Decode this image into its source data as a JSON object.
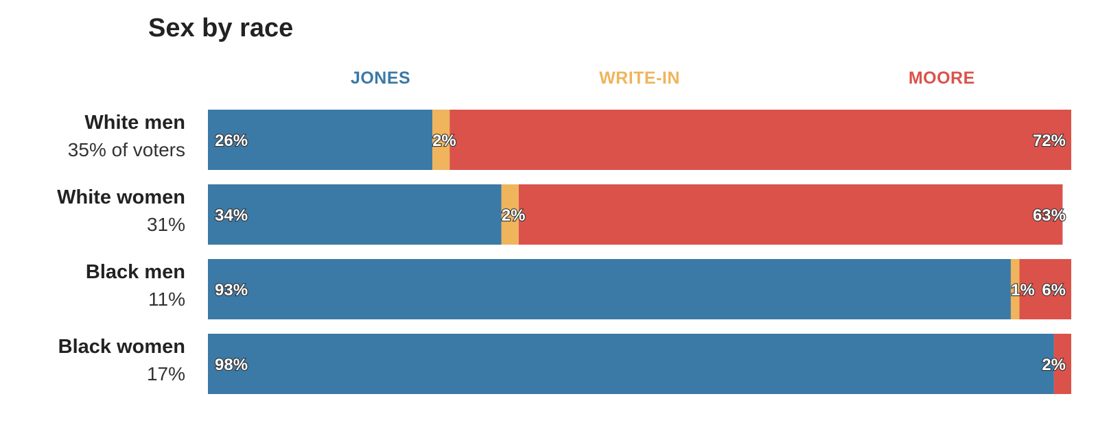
{
  "colors": {
    "jones": "#3b79a6",
    "write_in": "#efb45c",
    "moore": "#db524b"
  },
  "chart_data": {
    "type": "bar",
    "orientation": "horizontal",
    "stacked": true,
    "title": "Sex by race",
    "legend_position": "top",
    "categories": [
      "White men",
      "White women",
      "Black men",
      "Black women"
    ],
    "category_sublabels": [
      "35% of voters",
      "31%",
      "11%",
      "17%"
    ],
    "series": [
      {
        "name": "JONES",
        "color": "#3b79a6",
        "values": [
          26,
          34,
          93,
          98
        ]
      },
      {
        "name": "WRITE-IN",
        "color": "#efb45c",
        "values": [
          2,
          2,
          1,
          0
        ]
      },
      {
        "name": "MOORE",
        "color": "#db524b",
        "values": [
          72,
          63,
          6,
          2
        ]
      }
    ],
    "xlim": [
      0,
      100
    ]
  }
}
